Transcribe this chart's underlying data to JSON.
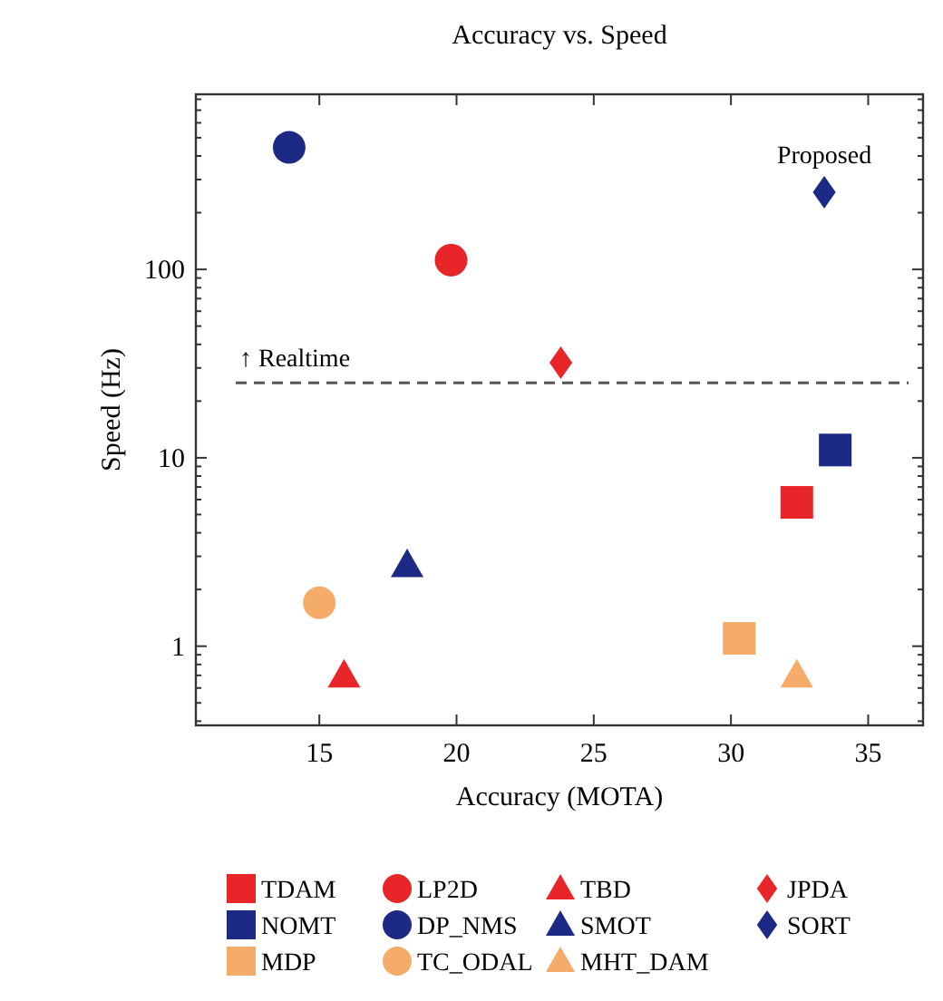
{
  "chart_data": {
    "type": "scatter",
    "title": "Accuracy vs. Speed",
    "xlabel": "Accuracy (MOTA)",
    "ylabel": "Speed (Hz)",
    "log": "y",
    "xlim": [
      10.5,
      37
    ],
    "xticks": [
      15,
      20,
      25,
      30,
      35
    ],
    "ylim": [
      0.38,
      850
    ],
    "yticks": [
      {
        "value": 0.4,
        "label": null
      },
      {
        "value": 0.5,
        "label": null
      },
      {
        "value": 0.6,
        "label": null
      },
      {
        "value": 0.7,
        "label": null
      },
      {
        "value": 0.8,
        "label": null
      },
      {
        "value": 0.9,
        "label": null
      },
      1,
      {
        "value": 2,
        "label": null
      },
      {
        "value": 3,
        "label": null
      },
      {
        "value": 4,
        "label": null
      },
      {
        "value": 5,
        "label": null
      },
      {
        "value": 6,
        "label": null
      },
      {
        "value": 7,
        "label": null
      },
      {
        "value": 8,
        "label": null
      },
      {
        "value": 9,
        "label": null
      },
      10,
      {
        "value": 20,
        "label": null
      },
      {
        "value": 30,
        "label": null
      },
      {
        "value": 40,
        "label": null
      },
      {
        "value": 50,
        "label": null
      },
      {
        "value": 60,
        "label": null
      },
      {
        "value": 70,
        "label": null
      },
      {
        "value": 80,
        "label": null
      },
      {
        "value": 90,
        "label": null
      },
      100,
      {
        "value": 200,
        "label": null
      },
      {
        "value": 300,
        "label": null
      },
      {
        "value": 400,
        "label": null
      },
      {
        "value": 500,
        "label": null
      },
      {
        "value": 600,
        "label": null
      },
      {
        "value": 700,
        "label": null
      },
      {
        "value": 800,
        "label": null
      }
    ],
    "grid": false,
    "legend": "bottom",
    "ref_lines": [
      {
        "axis": "y",
        "value": 25,
        "label": "↑ Realtime",
        "color": "#555555",
        "line_style": "dashed"
      }
    ],
    "annotations": [
      {
        "text": "Proposed",
        "x": 33.4,
        "y": 257
      }
    ],
    "series": [
      {
        "name": "TDAM",
        "color": "#e8262a",
        "marker": "square",
        "x": [
          32.4
        ],
        "values": [
          5.8
        ]
      },
      {
        "name": "LP2D",
        "color": "#e8262a",
        "marker": "circle",
        "x": [
          19.8
        ],
        "values": [
          112
        ]
      },
      {
        "name": "TBD",
        "color": "#e8262a",
        "marker": "triangle",
        "x": [
          15.9
        ],
        "values": [
          0.7
        ]
      },
      {
        "name": "JPDA",
        "color": "#e8262a",
        "marker": "diamond",
        "x": [
          23.8
        ],
        "values": [
          32
        ]
      },
      {
        "name": "NOMT",
        "color": "#1c2a85",
        "marker": "square",
        "x": [
          33.8
        ],
        "values": [
          11
        ]
      },
      {
        "name": "DP_NMS",
        "color": "#1c2a85",
        "marker": "circle",
        "x": [
          13.9
        ],
        "values": [
          444
        ]
      },
      {
        "name": "SMOT",
        "color": "#1c2a85",
        "marker": "triangle",
        "x": [
          18.2
        ],
        "values": [
          2.7
        ]
      },
      {
        "name": "SORT",
        "color": "#1c2a85",
        "marker": "diamond",
        "x": [
          33.4
        ],
        "values": [
          257
        ]
      },
      {
        "name": "MDP",
        "color": "#f5ac6a",
        "marker": "square",
        "x": [
          30.3
        ],
        "values": [
          1.1
        ]
      },
      {
        "name": "TC_ODAL",
        "color": "#f5ac6a",
        "marker": "circle",
        "x": [
          15.0
        ],
        "values": [
          1.7
        ]
      },
      {
        "name": "MHT_DAM",
        "color": "#f5ac6a",
        "marker": "triangle",
        "x": [
          32.4
        ],
        "values": [
          0.7
        ]
      }
    ]
  }
}
